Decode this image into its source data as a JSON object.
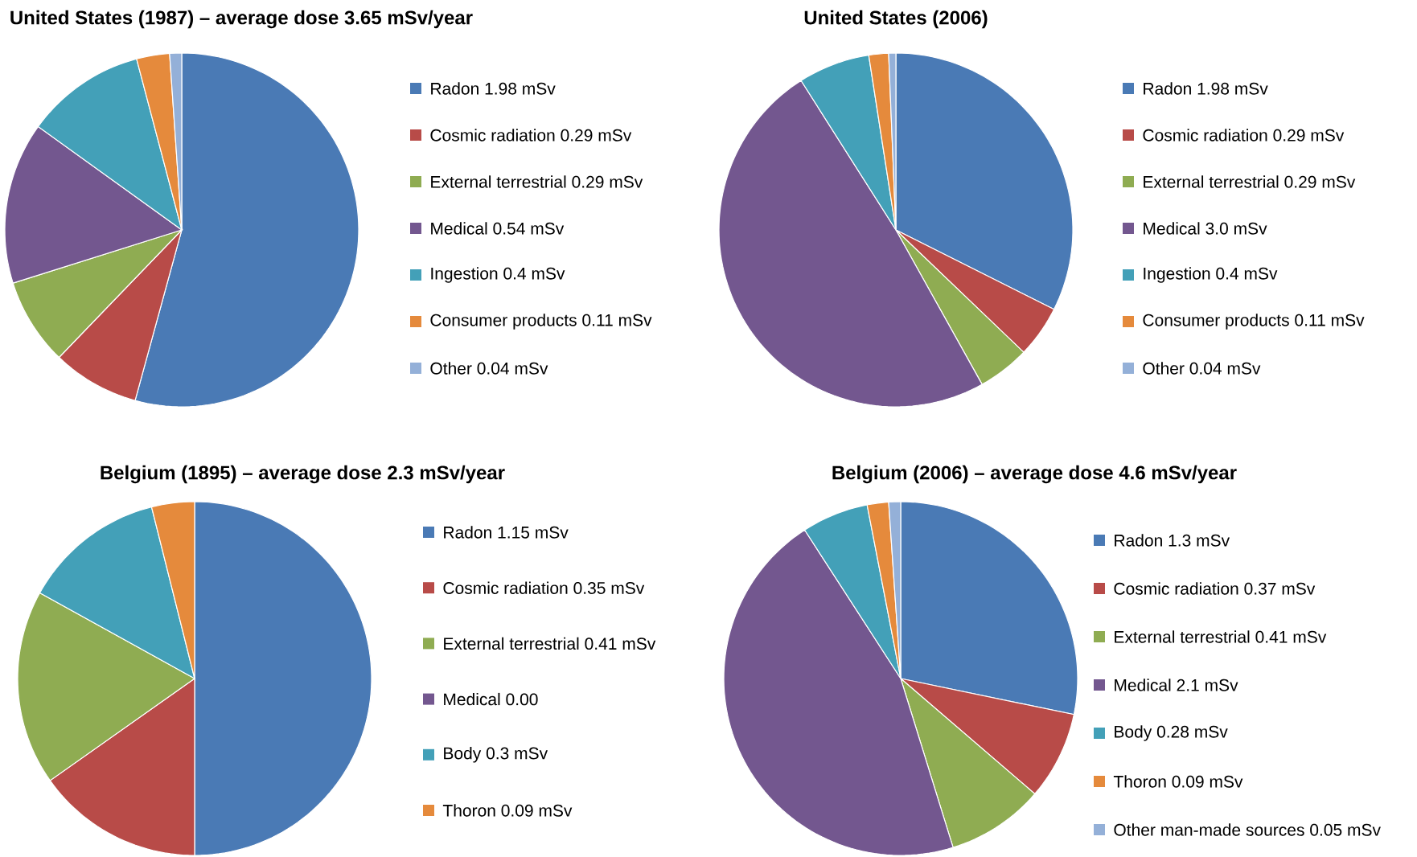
{
  "chart_data": [
    {
      "type": "pie",
      "title": "United States (1987) – average dose 3.65 mSv/year",
      "legend": "right",
      "categories": [
        "Radon 1.98 mSv",
        "Cosmic radiation 0.29 mSv",
        "External terrestrial 0.29 mSv",
        "Medical 0.54 mSv",
        "Ingestion 0.4 mSv",
        "Consumer products 0.11 mSv",
        "Other 0.04 mSv"
      ],
      "values": [
        1.98,
        0.29,
        0.29,
        0.54,
        0.4,
        0.11,
        0.04
      ],
      "colors": [
        "#4a7ab5",
        "#b84b48",
        "#8fac52",
        "#73578f",
        "#43a0b8",
        "#e58a3c",
        "#94b0d8"
      ]
    },
    {
      "type": "pie",
      "title": "United States (2006)",
      "legend": "right",
      "categories": [
        "Radon 1.98 mSv",
        "Cosmic radiation 0.29 mSv",
        "External terrestrial 0.29 mSv",
        "Medical 3.0 mSv",
        "Ingestion 0.4 mSv",
        "Consumer products 0.11 mSv",
        "Other 0.04 mSv"
      ],
      "values": [
        1.98,
        0.29,
        0.29,
        3.0,
        0.4,
        0.11,
        0.04
      ],
      "colors": [
        "#4a7ab5",
        "#b84b48",
        "#8fac52",
        "#73578f",
        "#43a0b8",
        "#e58a3c",
        "#94b0d8"
      ]
    },
    {
      "type": "pie",
      "title": "Belgium (1895) – average dose 2.3 mSv/year",
      "legend": "right",
      "categories": [
        "Radon 1.15 mSv",
        "Cosmic radiation 0.35 mSv",
        "External terrestrial 0.41 mSv",
        "Medical 0.00",
        "Body 0.3 mSv",
        "Thoron 0.09 mSv"
      ],
      "values": [
        1.15,
        0.35,
        0.41,
        0.0,
        0.3,
        0.09
      ],
      "colors": [
        "#4a7ab5",
        "#b84b48",
        "#8fac52",
        "#73578f",
        "#43a0b8",
        "#e58a3c"
      ]
    },
    {
      "type": "pie",
      "title": "Belgium (2006) – average dose 4.6 mSv/year",
      "legend": "right",
      "categories": [
        "Radon 1.3 mSv",
        "Cosmic radiation 0.37 mSv",
        "External terrestrial 0.41 mSv",
        "Medical 2.1 mSv",
        "Body 0.28 mSv",
        "Thoron 0.09 mSv",
        "Other man-made sources 0.05 mSv"
      ],
      "values": [
        1.3,
        0.37,
        0.41,
        2.1,
        0.28,
        0.09,
        0.05
      ],
      "colors": [
        "#4a7ab5",
        "#b84b48",
        "#8fac52",
        "#73578f",
        "#43a0b8",
        "#e58a3c",
        "#94b0d8"
      ]
    }
  ]
}
